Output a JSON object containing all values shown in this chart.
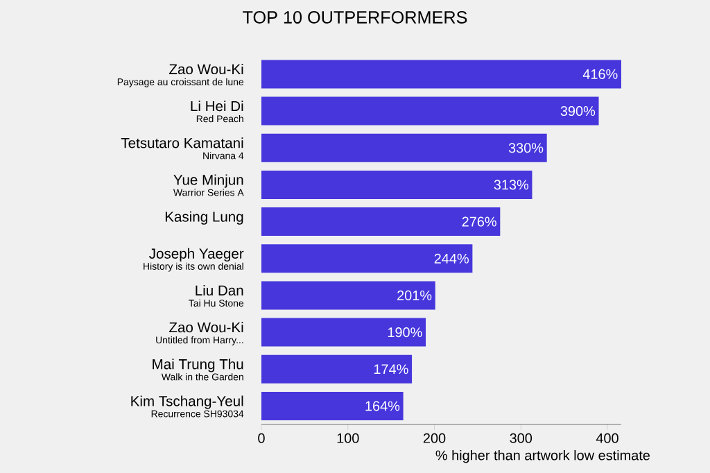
{
  "chart_data": {
    "type": "bar",
    "orientation": "horizontal",
    "title": "TOP 10 OUTPERFORMERS",
    "xlabel": "% higher than artwork low estimate",
    "categories": [
      "Zao Wou-Ki",
      "Li Hei Di",
      "Tetsutaro Kamatani",
      "Yue Minjun",
      "Kasing Lung",
      "Joseph Yaeger",
      "Liu Dan",
      "Zao Wou-Ki",
      "Mai Trung Thu",
      "Kim Tschang-Yeul"
    ],
    "annotations": [
      "Paysage au croissant de lune",
      "Red Peach",
      "Nirvana 4",
      "Warrior Series A",
      null,
      "History is its own denial",
      "Tai Hu Stone",
      "Untitled from Harry...",
      "Walk in the Garden",
      "Recurrence SH93034"
    ],
    "values": [
      416,
      390,
      330,
      313,
      276,
      244,
      201,
      190,
      174,
      164
    ],
    "value_labels": [
      "416%",
      "390%",
      "330%",
      "313%",
      "276%",
      "244%",
      "201%",
      "190%",
      "174%",
      "164%"
    ],
    "color": "#4636dc",
    "xlim": [
      0,
      416
    ],
    "xticks": [
      0,
      100,
      200,
      300,
      400
    ]
  }
}
